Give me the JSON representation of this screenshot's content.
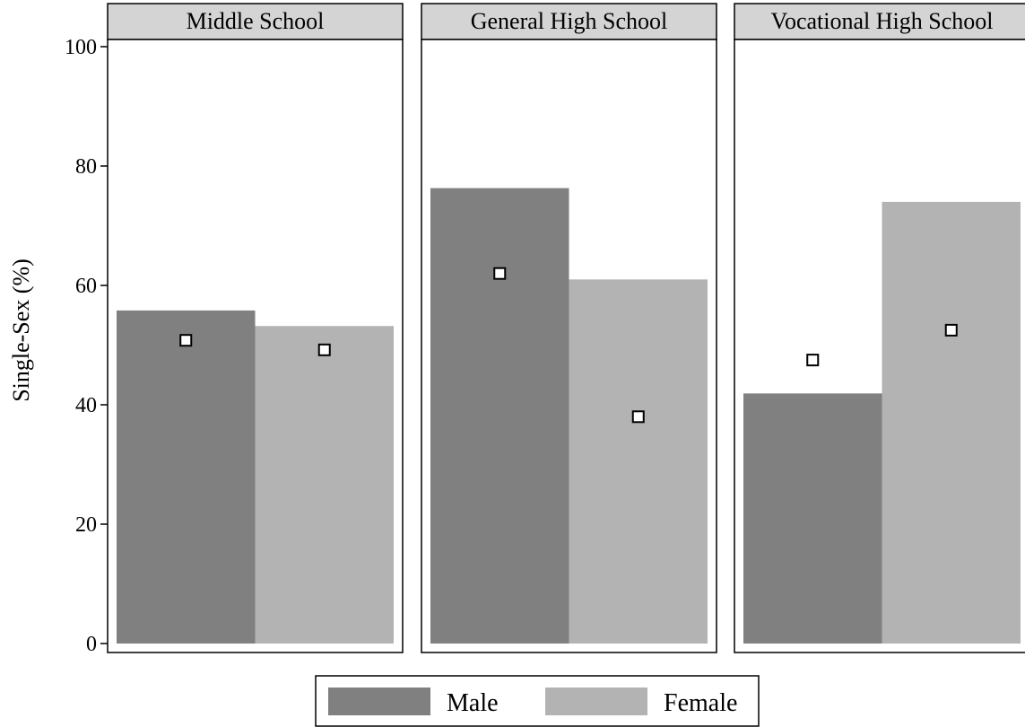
{
  "chart_data": {
    "type": "bar",
    "ylabel": "Single-Sex (%)",
    "ylim": [
      0,
      100
    ],
    "yticks": [
      0,
      20,
      40,
      60,
      80,
      100
    ],
    "grid": false,
    "legend_position": "bottom-center",
    "panels": [
      {
        "title": "Middle School",
        "bars": [
          {
            "series": "Male",
            "value": 55.8,
            "marker": 50.8
          },
          {
            "series": "Female",
            "value": 53.2,
            "marker": 49.2
          }
        ]
      },
      {
        "title": "General High School",
        "bars": [
          {
            "series": "Male",
            "value": 76.3,
            "marker": 62.0
          },
          {
            "series": "Female",
            "value": 61.0,
            "marker": 38.0
          }
        ]
      },
      {
        "title": "Vocational High School",
        "bars": [
          {
            "series": "Male",
            "value": 41.9,
            "marker": 47.5
          },
          {
            "series": "Female",
            "value": 74.0,
            "marker": 52.5
          }
        ]
      }
    ],
    "series": [
      {
        "name": "Male",
        "color": "#808080"
      },
      {
        "name": "Female",
        "color": "#b3b3b3"
      }
    ],
    "marker_style": "hollow-square"
  }
}
